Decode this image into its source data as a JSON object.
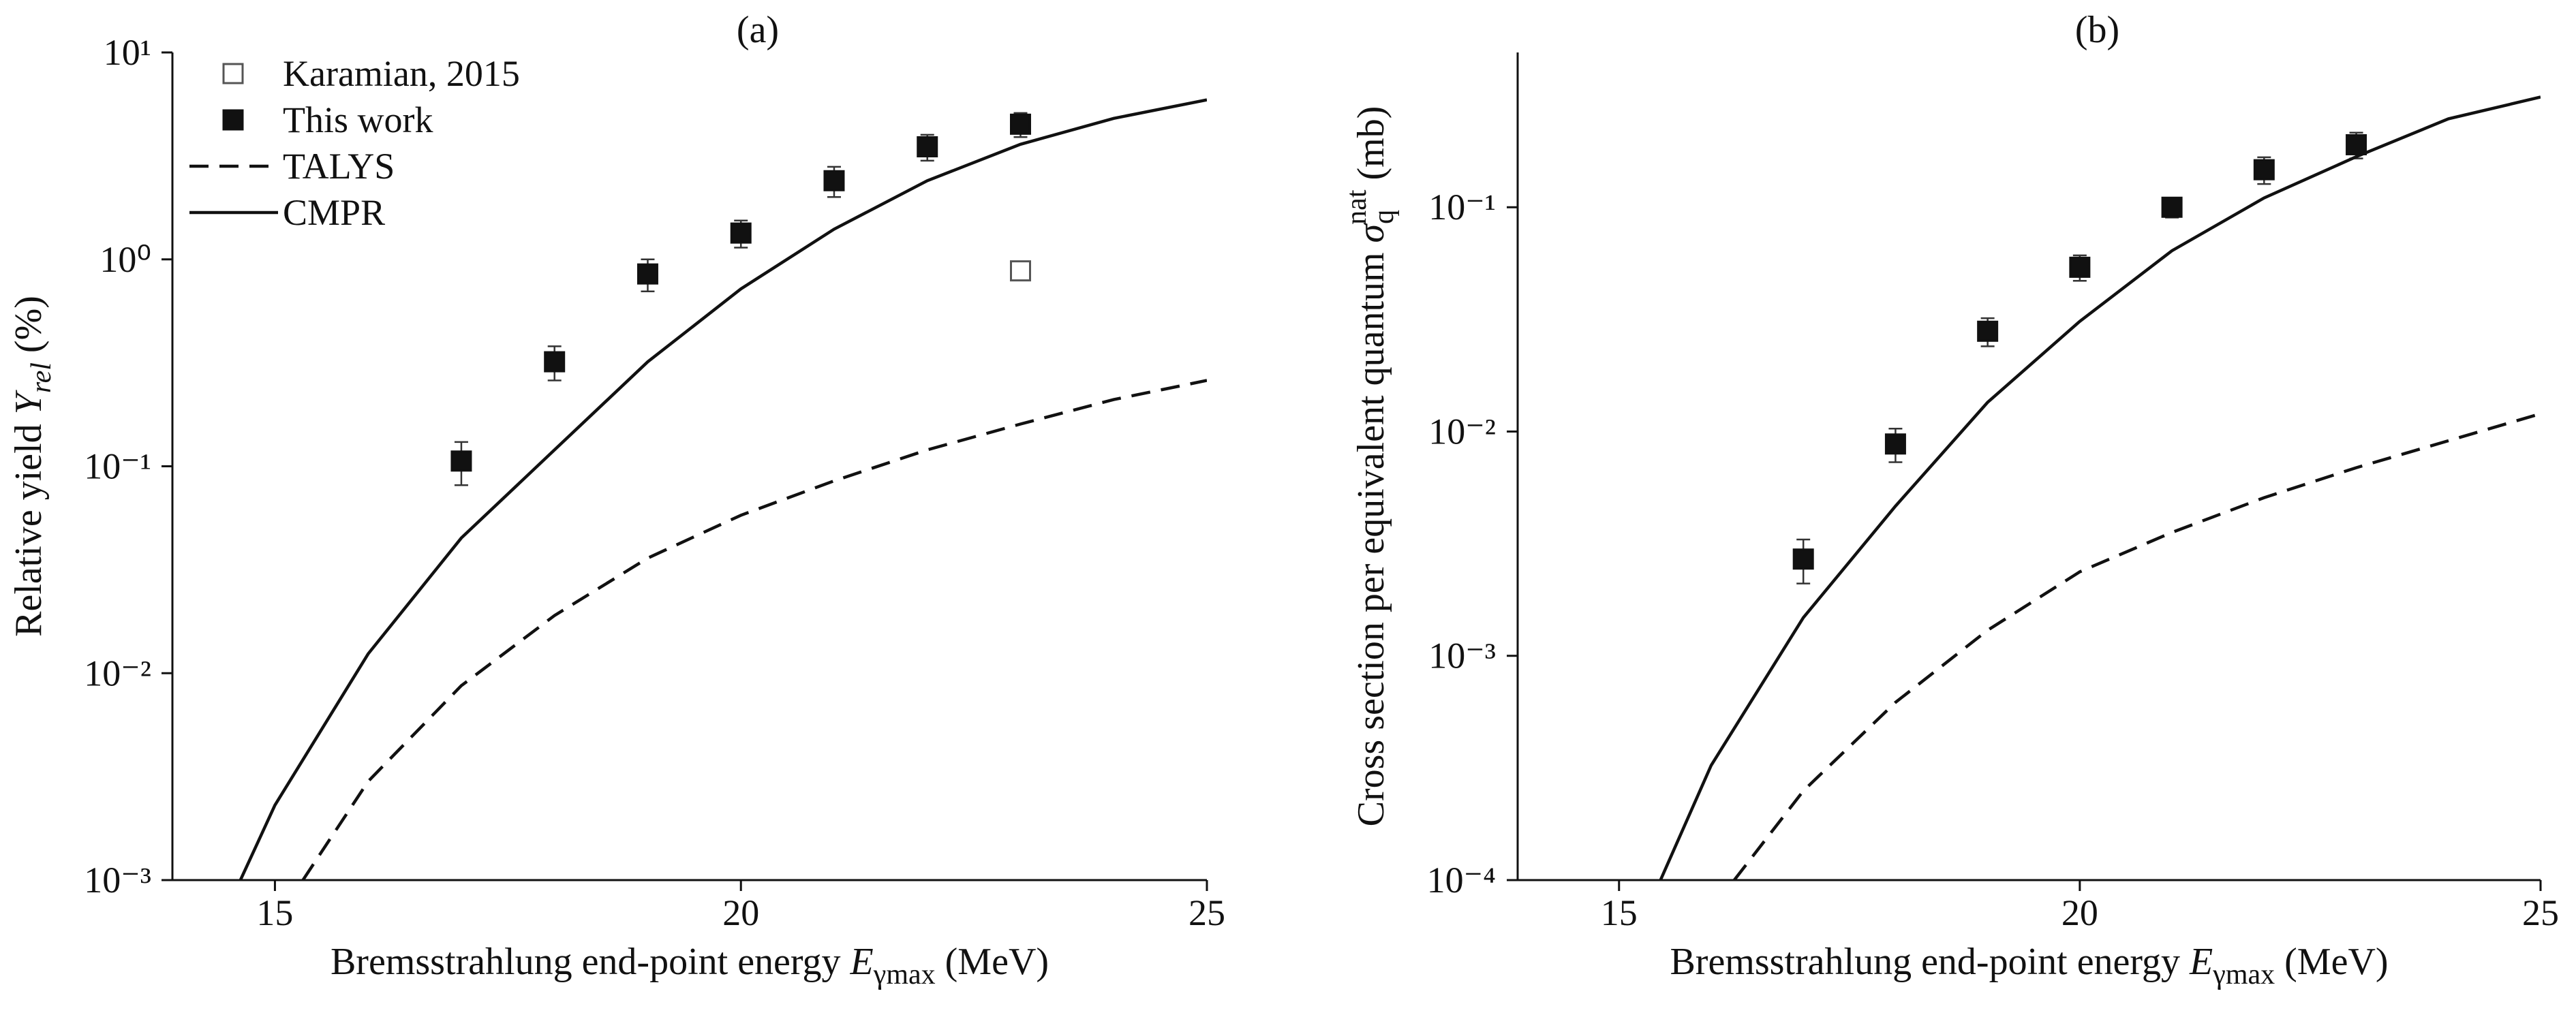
{
  "chart_data": [
    {
      "type": "scatter",
      "panel_label": "(a)",
      "xlabel": [
        "Bremsstrahlung end-point energy",
        "E",
        "γmax",
        "(MeV)"
      ],
      "ylabel": [
        "Relative yield",
        "Y",
        "rel",
        "(%)"
      ],
      "xlim": [
        13.9,
        25
      ],
      "xticks": [
        15,
        20,
        25
      ],
      "ylim": [
        0.001,
        10
      ],
      "yscale": "log",
      "yticks": [
        {
          "value": 0.001,
          "label": "10⁻³"
        },
        {
          "value": 0.01,
          "label": "10⁻²"
        },
        {
          "value": 0.1,
          "label": "10⁻¹"
        },
        {
          "value": 1,
          "label": "10⁰"
        },
        {
          "value": 10,
          "label": "10¹"
        }
      ],
      "legend": "upper left",
      "series": [
        {
          "name": "Karamian, 2015",
          "kind": "marker",
          "marker": "open-square",
          "color": "#555555",
          "x": [
            23
          ],
          "values": [
            0.88
          ]
        },
        {
          "name": "This work",
          "kind": "marker",
          "marker": "filled-square",
          "color": "#111111",
          "x": [
            17,
            18,
            19,
            20,
            21,
            22,
            23
          ],
          "values": [
            0.106,
            0.32,
            0.85,
            1.34,
            2.4,
            3.5,
            4.5
          ],
          "errors": [
            0.025,
            0.06,
            0.15,
            0.2,
            0.4,
            0.5,
            0.6
          ]
        },
        {
          "name": "TALYS",
          "kind": "line",
          "style": "dashed",
          "color": "#111111",
          "x": [
            15.3,
            16,
            17,
            18,
            19,
            20,
            21,
            22,
            23,
            24,
            25
          ],
          "values": [
            0.001,
            0.003,
            0.0087,
            0.019,
            0.036,
            0.058,
            0.085,
            0.12,
            0.16,
            0.21,
            0.26
          ]
        },
        {
          "name": "CMPR",
          "kind": "line",
          "style": "solid",
          "color": "#111111",
          "x": [
            14.63,
            15,
            16,
            17,
            18,
            19,
            20,
            21,
            22,
            23,
            24,
            25
          ],
          "values": [
            0.001,
            0.0023,
            0.0124,
            0.045,
            0.12,
            0.32,
            0.72,
            1.4,
            2.4,
            3.6,
            4.8,
            5.9
          ]
        }
      ]
    },
    {
      "type": "scatter",
      "panel_label": "(b)",
      "xlabel": [
        "Bremsstrahlung end-point energy",
        "E",
        "γmax",
        "(MeV)"
      ],
      "ylabel": [
        "Cross section per equivalent quantum",
        "σ",
        "q",
        "nat",
        "(mb)"
      ],
      "xlim": [
        13.9,
        25
      ],
      "xticks": [
        15,
        20,
        25
      ],
      "ylim": [
        0.0001,
        0.49
      ],
      "yscale": "log",
      "yticks": [
        {
          "value": 0.0001,
          "label": "10⁻⁴"
        },
        {
          "value": 0.001,
          "label": "10⁻³"
        },
        {
          "value": 0.01,
          "label": "10⁻²"
        },
        {
          "value": 0.1,
          "label": "10⁻¹"
        }
      ],
      "series": [
        {
          "name": "This work",
          "kind": "marker",
          "marker": "filled-square",
          "color": "#111111",
          "x": [
            17,
            18,
            19,
            20,
            21,
            22,
            23
          ],
          "values": [
            0.0027,
            0.0088,
            0.028,
            0.054,
            0.1,
            0.147,
            0.19
          ],
          "errors": [
            0.0006,
            0.0015,
            0.004,
            0.007,
            0.01,
            0.02,
            0.025
          ]
        },
        {
          "name": "TALYS",
          "kind": "line",
          "style": "dashed",
          "color": "#111111",
          "x": [
            16.25,
            17,
            18,
            19,
            20,
            21,
            22,
            23,
            24,
            25
          ],
          "values": [
            0.0001,
            0.00025,
            0.00062,
            0.0013,
            0.00237,
            0.00355,
            0.00507,
            0.0069,
            0.0091,
            0.012
          ]
        },
        {
          "name": "CMPR",
          "kind": "line",
          "style": "solid",
          "color": "#111111",
          "x": [
            15.45,
            16,
            17,
            18,
            19,
            20,
            21,
            22,
            23,
            24,
            25
          ],
          "values": [
            0.0001,
            0.000325,
            0.00148,
            0.00465,
            0.0135,
            0.031,
            0.064,
            0.11,
            0.168,
            0.248,
            0.31
          ]
        }
      ]
    }
  ]
}
